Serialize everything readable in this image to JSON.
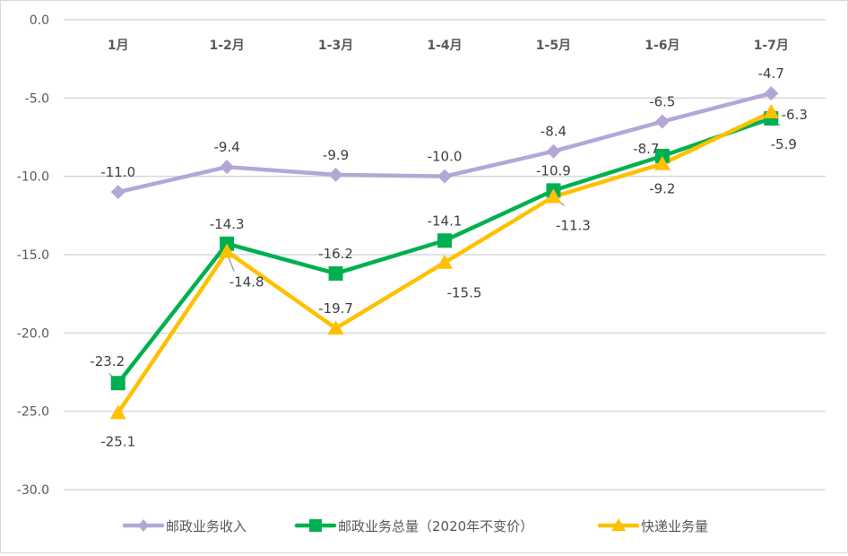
{
  "chart_data": {
    "type": "line",
    "title": "",
    "xlabel": "",
    "ylabel": "",
    "categories": [
      "1月",
      "1-2月",
      "1-3月",
      "1-4月",
      "1-5月",
      "1-6月",
      "1-7月"
    ],
    "ylim": [
      -30,
      0
    ],
    "yticks": [
      0,
      -5,
      -10,
      -15,
      -20,
      -25,
      -30
    ],
    "ytick_labels": [
      "0.0",
      "-5.0",
      "-10.0",
      "-15.0",
      "-20.0",
      "-25.0",
      "-30.0"
    ],
    "grid": true,
    "legend_position": "bottom",
    "series": [
      {
        "name": "邮政业务收入",
        "color": "#b4a7d6",
        "marker": "diamond",
        "values": [
          -11.0,
          -9.4,
          -9.9,
          -10.0,
          -8.4,
          -6.5,
          -4.7
        ],
        "labels": [
          "-11.0",
          "-9.4",
          "-9.9",
          "-10.0",
          "-8.4",
          "-6.5",
          "-4.7"
        ]
      },
      {
        "name": "邮政业务总量（2020年不变价）",
        "color": "#00b050",
        "marker": "square",
        "values": [
          -23.2,
          -14.3,
          -16.2,
          -14.1,
          -10.9,
          -8.7,
          -6.3
        ],
        "labels": [
          "-23.2",
          "-14.3",
          "-16.2",
          "-14.1",
          "-10.9",
          "-8.7",
          "-6.3"
        ]
      },
      {
        "name": "快递业务量",
        "color": "#ffc000",
        "marker": "triangle",
        "values": [
          -25.1,
          -14.8,
          -19.7,
          -15.5,
          -11.3,
          -9.2,
          -5.9
        ],
        "labels": [
          "-25.1",
          "-14.8",
          "-19.7",
          "-15.5",
          "-11.3",
          "-9.2",
          "-5.9"
        ]
      }
    ]
  }
}
